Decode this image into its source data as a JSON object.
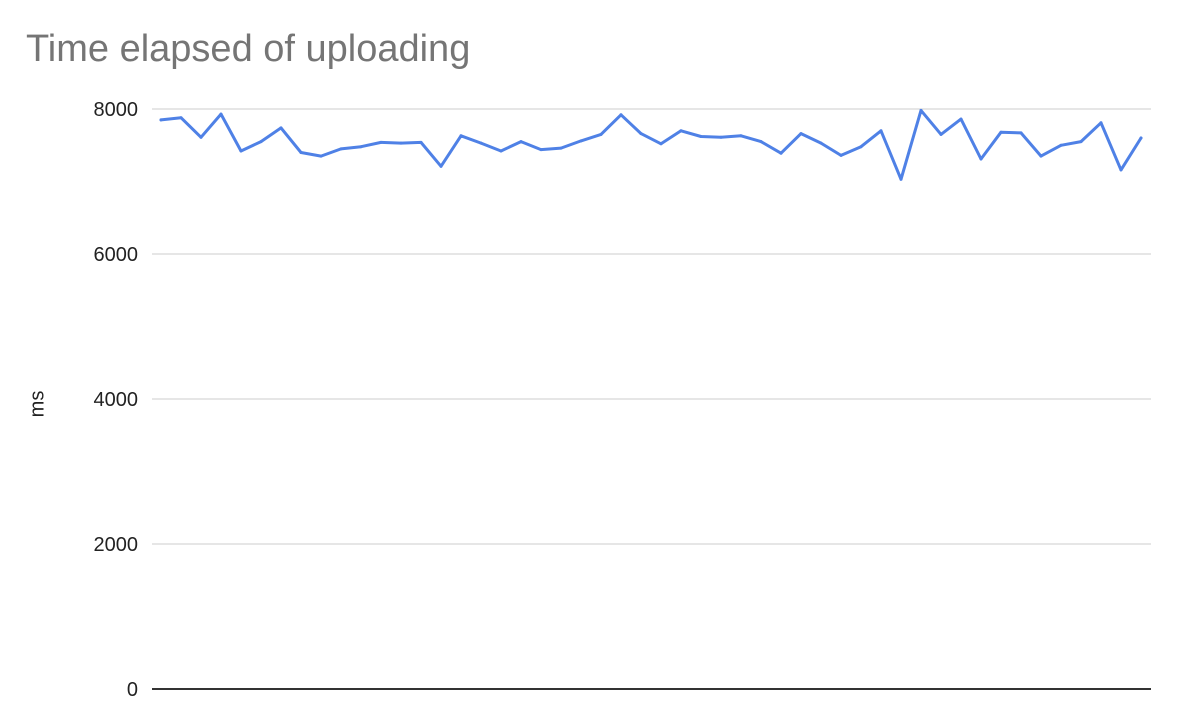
{
  "chart_data": {
    "type": "line",
    "title": "Time elapsed of uploading",
    "xlabel": "",
    "ylabel": "ms",
    "ylim": [
      0,
      8000
    ],
    "yticks": [
      0,
      2000,
      4000,
      6000,
      8000
    ],
    "ytick_labels": [
      "0",
      "2000",
      "4000",
      "6000",
      "8000"
    ],
    "grid": true,
    "legend": "none",
    "line_color": "#4f81e6",
    "x": [
      1,
      2,
      3,
      4,
      5,
      6,
      7,
      8,
      9,
      10,
      11,
      12,
      13,
      14,
      15,
      16,
      17,
      18,
      19,
      20,
      21,
      22,
      23,
      24,
      25,
      26,
      27,
      28,
      29,
      30,
      31,
      32,
      33,
      34,
      35,
      36,
      37,
      38,
      39,
      40,
      41,
      42,
      43,
      44,
      45,
      46,
      47,
      48,
      49,
      50
    ],
    "series": [
      {
        "values": [
          7850,
          7880,
          7610,
          7930,
          7420,
          7550,
          7740,
          7400,
          7350,
          7450,
          7480,
          7540,
          7530,
          7540,
          7210,
          7630,
          7530,
          7420,
          7550,
          7440,
          7460,
          7560,
          7650,
          7920,
          7660,
          7520,
          7700,
          7620,
          7610,
          7630,
          7550,
          7390,
          7660,
          7530,
          7360,
          7480,
          7700,
          7030,
          7980,
          7650,
          7860,
          7310,
          7680,
          7670,
          7350,
          7500,
          7550,
          7810,
          7160,
          7600
        ]
      }
    ]
  }
}
